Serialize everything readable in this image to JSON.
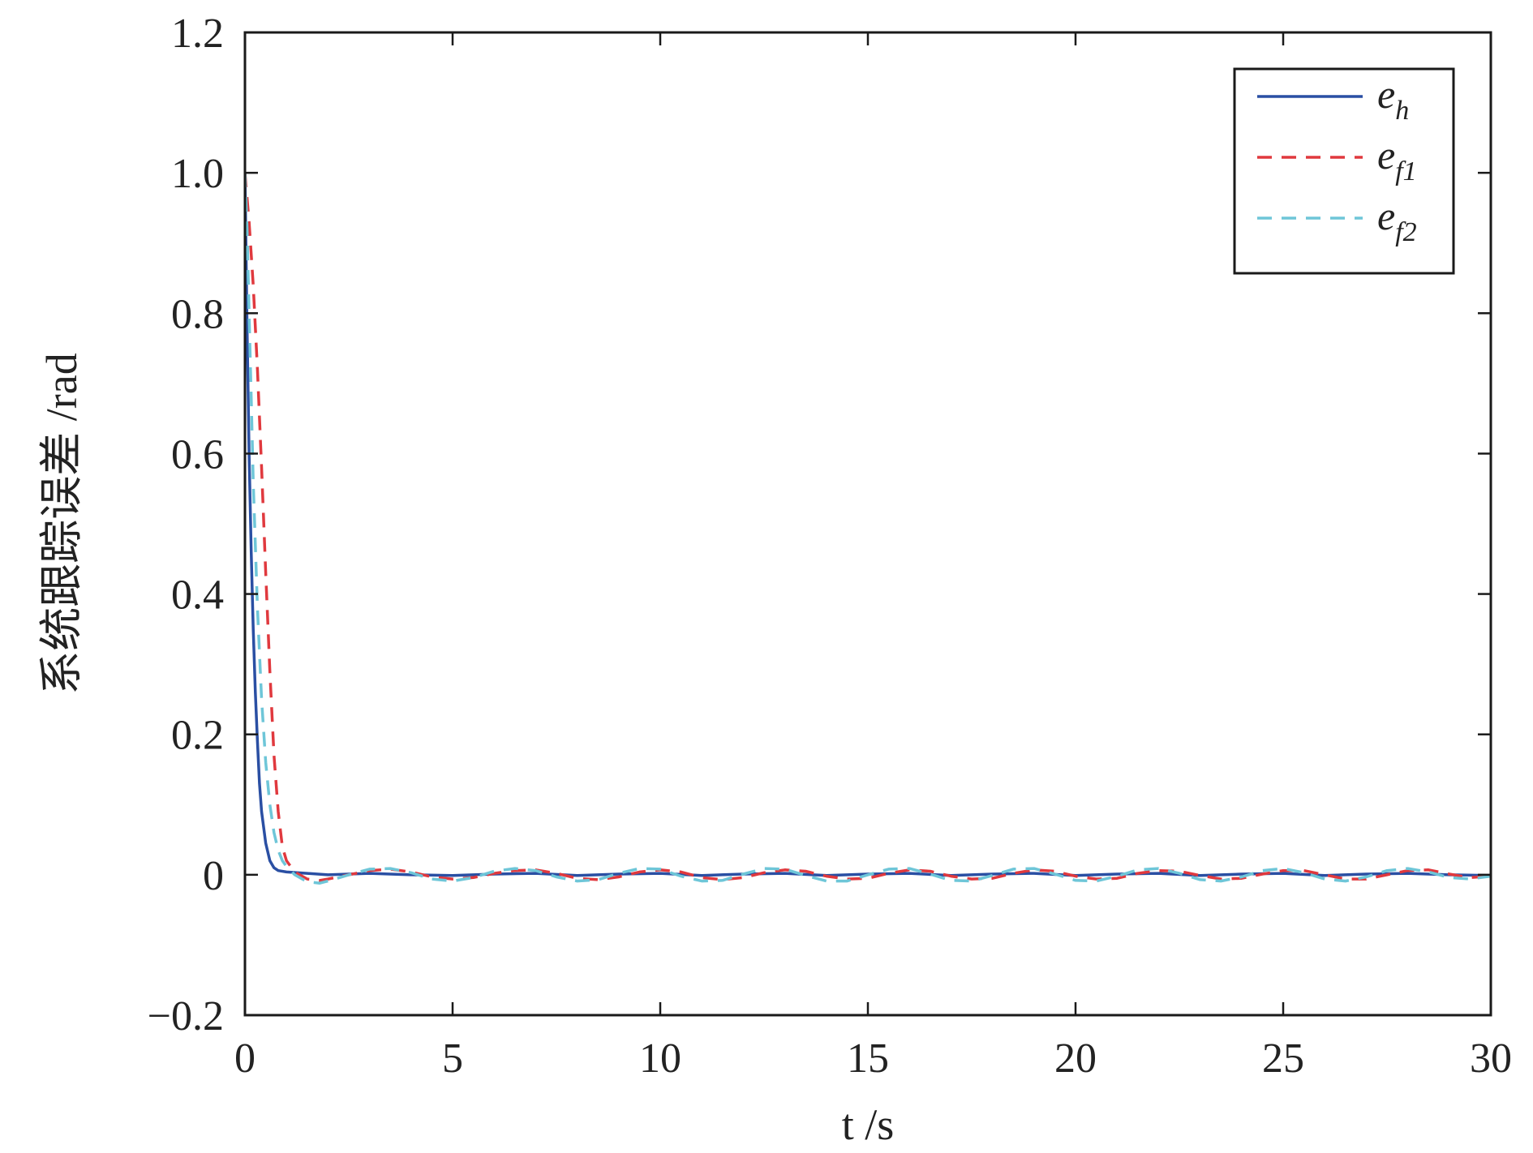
{
  "chart_data": {
    "type": "line",
    "title": "",
    "xlabel": "t /s",
    "ylabel": "系统跟踪误差 /rad",
    "xlim": [
      0,
      30
    ],
    "ylim": [
      -0.2,
      1.2
    ],
    "xticks": [
      0,
      5,
      10,
      15,
      20,
      25,
      30
    ],
    "xtick_labels": [
      "0",
      "5",
      "10",
      "15",
      "20",
      "25",
      "30"
    ],
    "yticks": [
      -0.2,
      0,
      0.2,
      0.4,
      0.6,
      0.8,
      1.0,
      1.2
    ],
    "ytick_labels": [
      "−0.2",
      "0",
      "0.2",
      "0.4",
      "0.6",
      "0.8",
      "1.0",
      "1.2"
    ],
    "grid": false,
    "legend_position": "top-right",
    "series": [
      {
        "name": "e_h",
        "legend_base": "e",
        "legend_sub": "h",
        "color": "#2a4fa3",
        "style": "solid",
        "x": [
          0,
          0.05,
          0.1,
          0.15,
          0.2,
          0.25,
          0.3,
          0.35,
          0.4,
          0.5,
          0.6,
          0.7,
          0.8,
          1.0,
          1.5,
          2.0,
          3.0,
          4.0,
          5.0,
          6.0,
          7.0,
          8.0,
          9.0,
          10.0,
          11.0,
          12.0,
          13.0,
          14.0,
          15.0,
          16.0,
          17.0,
          18.0,
          19.0,
          20.0,
          21.0,
          22.0,
          23.0,
          24.0,
          25.0,
          26.0,
          27.0,
          28.0,
          29.0,
          30.0
        ],
        "y": [
          1.0,
          0.78,
          0.6,
          0.46,
          0.35,
          0.26,
          0.19,
          0.13,
          0.09,
          0.045,
          0.02,
          0.01,
          0.006,
          0.004,
          0.002,
          0.0,
          0.002,
          0.0,
          -0.001,
          0.001,
          0.002,
          -0.001,
          0.001,
          0.002,
          -0.001,
          0.001,
          0.002,
          -0.001,
          0.001,
          0.002,
          -0.001,
          0.001,
          0.002,
          -0.001,
          0.001,
          0.002,
          -0.001,
          0.001,
          0.002,
          -0.001,
          0.001,
          0.002,
          0.0,
          -0.001
        ]
      },
      {
        "name": "e_f1",
        "legend_base": "e",
        "legend_sub": "f1",
        "color": "#e0393e",
        "style": "dashed",
        "x": [
          0,
          0.1,
          0.2,
          0.3,
          0.4,
          0.5,
          0.6,
          0.7,
          0.8,
          0.9,
          1.0,
          1.2,
          1.5,
          1.8,
          2.0,
          2.5,
          3.0,
          3.5,
          4.0,
          4.5,
          5.0,
          5.5,
          6.0,
          6.5,
          7.0,
          7.5,
          8.0,
          8.5,
          9.0,
          9.5,
          10.0,
          10.5,
          11.0,
          11.5,
          12.0,
          12.5,
          13.0,
          13.5,
          14.0,
          14.5,
          15.0,
          15.5,
          16.0,
          16.5,
          17.0,
          17.5,
          18.0,
          18.5,
          19.0,
          19.5,
          20.0,
          20.5,
          21.0,
          21.5,
          22.0,
          22.5,
          23.0,
          23.5,
          24.0,
          24.5,
          25.0,
          25.5,
          26.0,
          26.5,
          27.0,
          27.5,
          28.0,
          28.5,
          29.0,
          29.5,
          30.0
        ],
        "y": [
          1.0,
          0.93,
          0.84,
          0.72,
          0.58,
          0.43,
          0.29,
          0.17,
          0.09,
          0.04,
          0.02,
          0.004,
          -0.006,
          -0.008,
          -0.006,
          0.0,
          0.006,
          0.008,
          0.004,
          -0.003,
          -0.006,
          -0.004,
          0.002,
          0.006,
          0.007,
          0.002,
          -0.005,
          -0.007,
          -0.003,
          0.004,
          0.007,
          0.004,
          -0.004,
          -0.007,
          -0.004,
          0.003,
          0.007,
          0.005,
          -0.002,
          -0.006,
          -0.005,
          0.002,
          0.007,
          0.005,
          -0.002,
          -0.006,
          -0.005,
          0.002,
          0.007,
          0.005,
          -0.002,
          -0.006,
          -0.005,
          0.002,
          0.006,
          0.005,
          -0.001,
          -0.006,
          -0.005,
          0.001,
          0.006,
          0.006,
          0.0,
          -0.006,
          -0.006,
          0.0,
          0.006,
          0.007,
          0.001,
          -0.004,
          -0.002
        ]
      },
      {
        "name": "e_f2",
        "legend_base": "e",
        "legend_sub": "f2",
        "color": "#6ec6d8",
        "style": "dashed",
        "x": [
          0,
          0.05,
          0.1,
          0.15,
          0.2,
          0.3,
          0.4,
          0.5,
          0.6,
          0.7,
          0.8,
          0.9,
          1.0,
          1.2,
          1.5,
          1.8,
          2.0,
          2.5,
          3.0,
          3.5,
          4.0,
          4.5,
          5.0,
          5.5,
          6.0,
          6.5,
          7.0,
          7.5,
          8.0,
          8.5,
          9.0,
          9.5,
          10.0,
          10.5,
          11.0,
          11.5,
          12.0,
          12.5,
          13.0,
          13.5,
          14.0,
          14.5,
          15.0,
          15.5,
          16.0,
          16.5,
          17.0,
          17.5,
          18.0,
          18.5,
          19.0,
          19.5,
          20.0,
          20.5,
          21.0,
          21.5,
          22.0,
          22.5,
          23.0,
          23.5,
          24.0,
          24.5,
          25.0,
          25.5,
          26.0,
          26.5,
          27.0,
          27.5,
          28.0,
          28.5,
          29.0,
          29.5,
          30.0
        ],
        "y": [
          1.0,
          0.92,
          0.8,
          0.68,
          0.56,
          0.38,
          0.25,
          0.16,
          0.1,
          0.06,
          0.035,
          0.02,
          0.012,
          0.0,
          -0.01,
          -0.012,
          -0.009,
          0.0,
          0.008,
          0.009,
          0.003,
          -0.006,
          -0.009,
          -0.004,
          0.005,
          0.009,
          0.006,
          -0.003,
          -0.009,
          -0.007,
          0.002,
          0.009,
          0.008,
          -0.002,
          -0.009,
          -0.008,
          0.001,
          0.009,
          0.008,
          -0.001,
          -0.009,
          -0.009,
          0.0,
          0.008,
          0.009,
          0.001,
          -0.008,
          -0.009,
          -0.001,
          0.008,
          0.009,
          0.001,
          -0.008,
          -0.009,
          -0.002,
          0.007,
          0.009,
          0.002,
          -0.007,
          -0.009,
          -0.003,
          0.006,
          0.009,
          0.003,
          -0.006,
          -0.009,
          -0.003,
          0.006,
          0.009,
          0.004,
          -0.004,
          -0.006,
          -0.002
        ]
      }
    ]
  }
}
